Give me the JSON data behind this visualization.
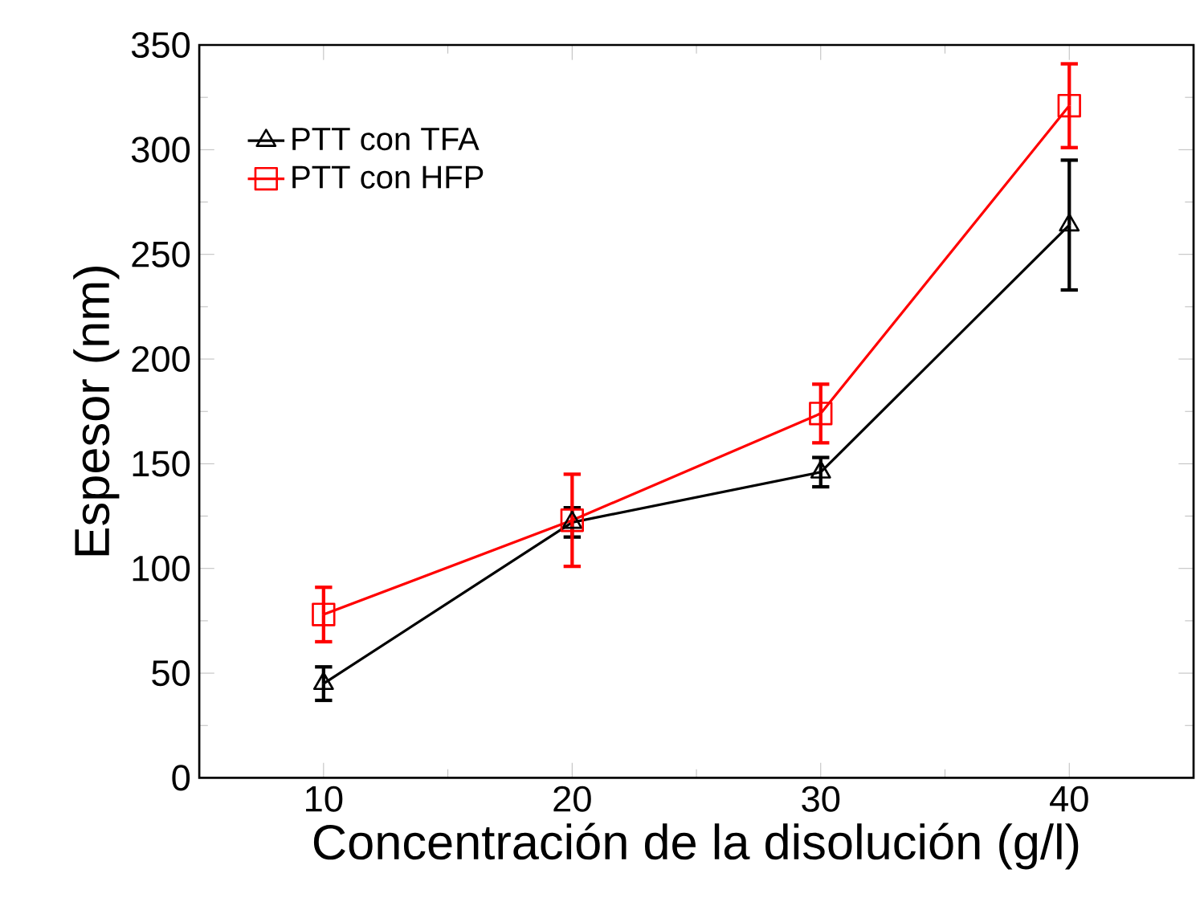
{
  "chart_data": {
    "type": "line",
    "xlabel": "Concentración de la disolución (g/l)",
    "ylabel": "Espesor (nm)",
    "x": [
      10,
      20,
      30,
      40
    ],
    "series": [
      {
        "name": "PTT con TFA",
        "color": "#000000",
        "marker": "triangle",
        "values": [
          45,
          122,
          146,
          264
        ],
        "errors": [
          8,
          7,
          7,
          31
        ]
      },
      {
        "name": "PTT con HFP",
        "color": "#ff0000",
        "marker": "square",
        "values": [
          78,
          123,
          174,
          321
        ],
        "errors": [
          13,
          22,
          14,
          20
        ]
      }
    ],
    "xlim": [
      5,
      45
    ],
    "ylim": [
      0,
      350
    ],
    "xticks": [
      10,
      20,
      30,
      40
    ],
    "yticks": [
      0,
      50,
      100,
      150,
      200,
      250,
      300,
      350
    ],
    "legend": "top left",
    "grid": false,
    "line_style": "solid"
  }
}
